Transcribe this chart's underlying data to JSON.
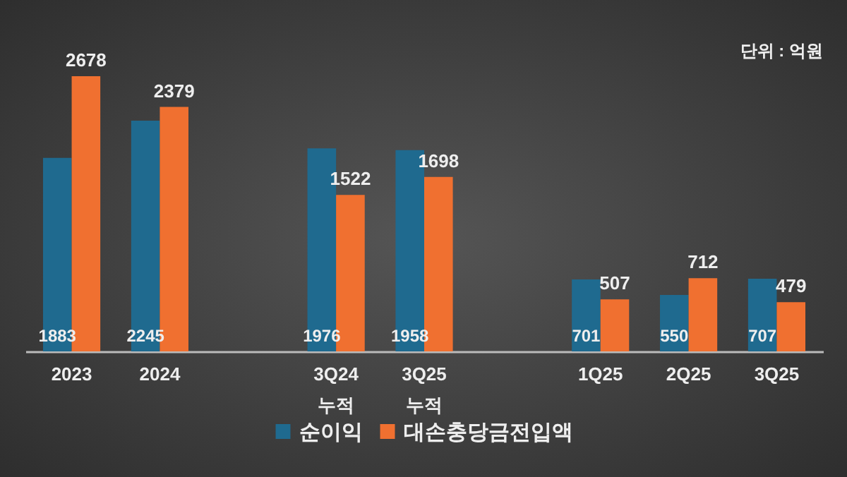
{
  "chart_data": {
    "type": "bar",
    "categories": [
      "2023",
      "2024",
      null,
      "3Q24\n누적",
      "3Q25\n누적",
      null,
      "1Q25",
      "2Q25",
      "3Q25"
    ],
    "series": [
      {
        "name": "순이익",
        "color": "#1f6a8f",
        "values": [
          1883,
          2245,
          null,
          1976,
          1958,
          null,
          701,
          550,
          707
        ]
      },
      {
        "name": "대손충당금전입액",
        "color": "#f07030",
        "values": [
          2678,
          2379,
          null,
          1522,
          1698,
          null,
          507,
          712,
          479
        ]
      }
    ],
    "data_labels": true,
    "legend": "bottom",
    "annotations": [
      "단위 : 억원"
    ]
  }
}
